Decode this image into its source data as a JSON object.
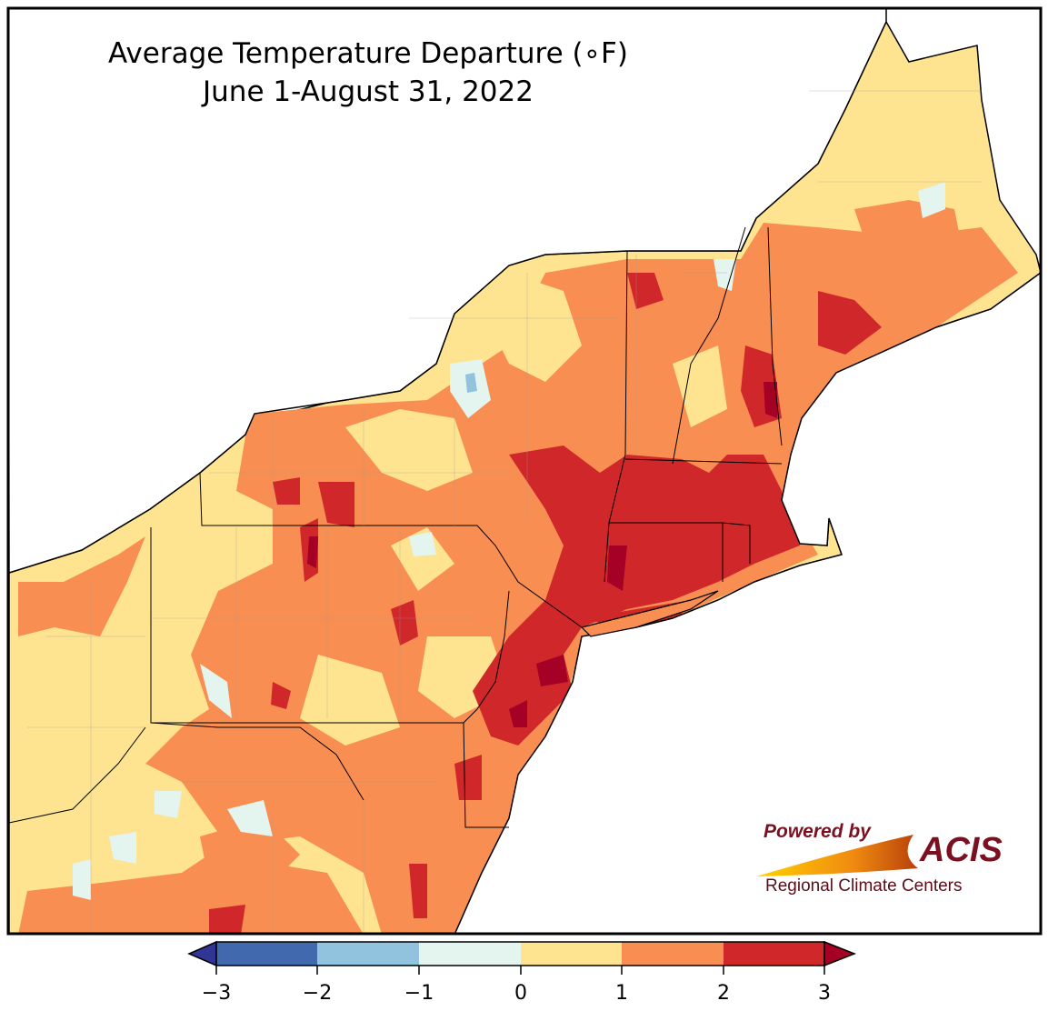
{
  "title": {
    "line1": "Average Temperature Departure (∘F)",
    "line2": "June 1-August 31, 2022"
  },
  "logo": {
    "powered_by": "Powered by",
    "name": "ACIS",
    "subtitle": "Regional Climate Centers"
  },
  "colorbar": {
    "unit": "°F",
    "ticks": [
      "−3",
      "−2",
      "−1",
      "0",
      "1",
      "2",
      "3"
    ],
    "bins": [
      {
        "range": "< -3",
        "color": "#313695"
      },
      {
        "range": "-3 to -2",
        "color": "#4169ad"
      },
      {
        "range": "-2 to -1",
        "color": "#91c3de"
      },
      {
        "range": "-1 to 0",
        "color": "#e4f4ef"
      },
      {
        "range": "0 to 1",
        "color": "#fee391"
      },
      {
        "range": "1 to 2",
        "color": "#f98e52"
      },
      {
        "range": "2 to 3",
        "color": "#d0282a"
      },
      {
        "range": "> 3",
        "color": "#a50026"
      }
    ]
  }
}
